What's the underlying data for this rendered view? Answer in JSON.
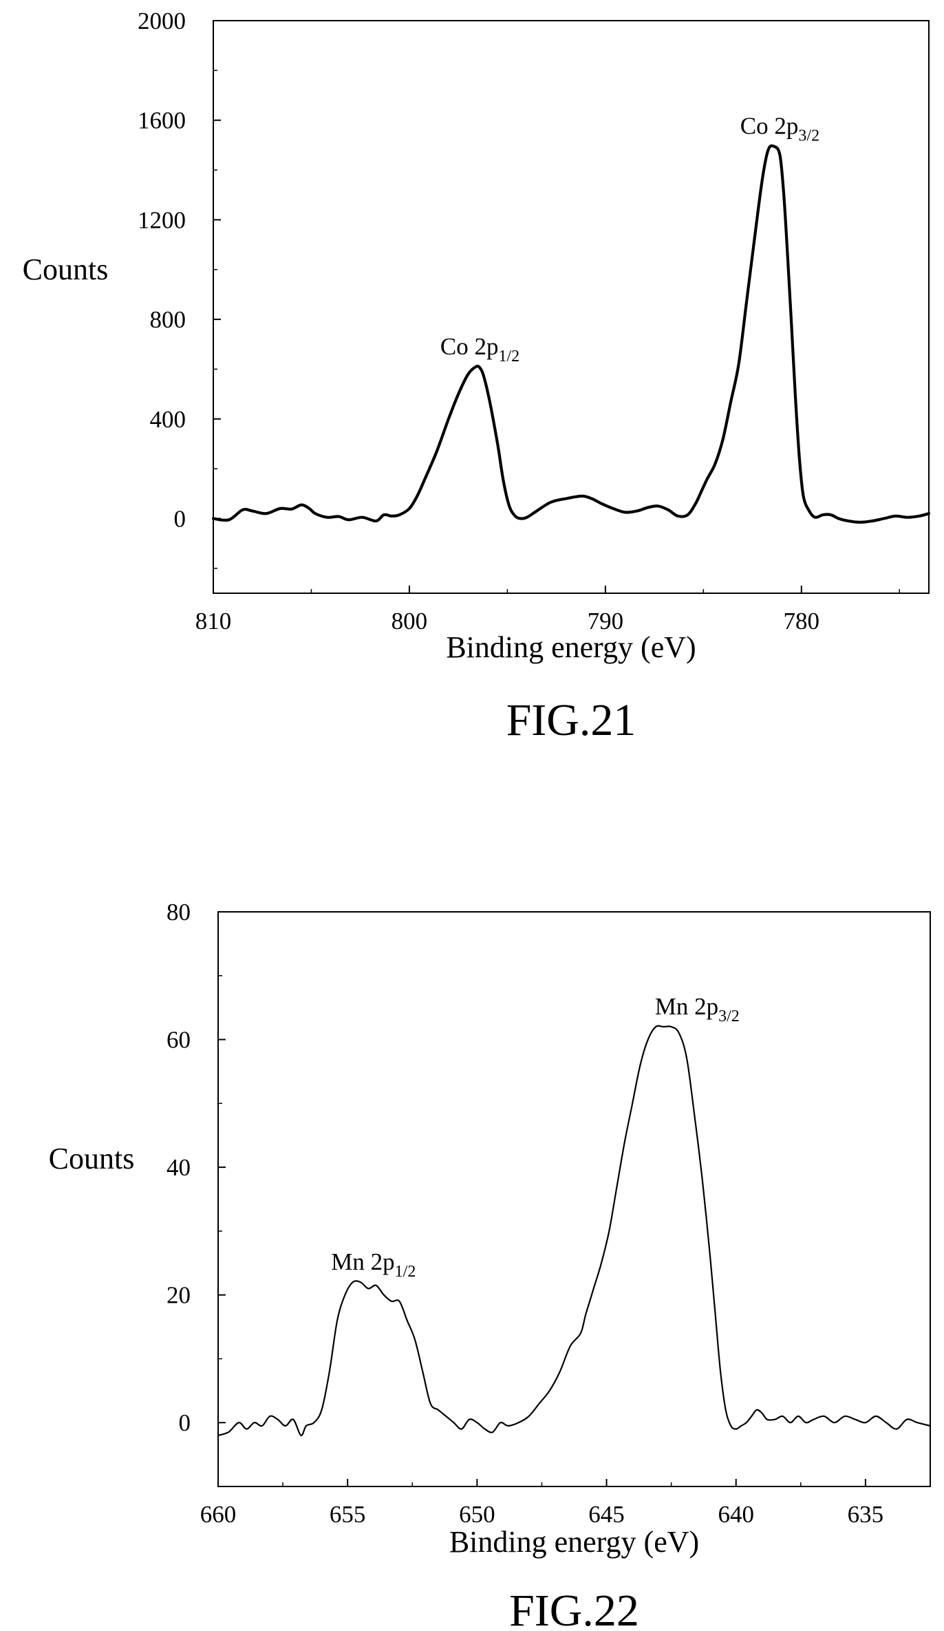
{
  "chart_data": [
    {
      "type": "line",
      "caption": "FIG.21",
      "xlabel": "Binding energy (eV)",
      "ylabel": "Counts",
      "xlim": [
        810,
        773.5
      ],
      "ylim": [
        -300,
        2000
      ],
      "xticks": [
        810,
        800,
        790,
        780
      ],
      "yticks": [
        0,
        400,
        800,
        1200,
        1600,
        2000
      ],
      "annotations": [
        {
          "main": "Co 2p",
          "sub": "1/2",
          "x": 796.4,
          "y": 610
        },
        {
          "main": "Co 2p",
          "sub": "3/2",
          "x": 781.1,
          "y": 1495
        }
      ],
      "series": [
        {
          "x": [
            810,
            809.2,
            808.5,
            808.0,
            807.3,
            806.6,
            806.0,
            805.5,
            805.1,
            804.8,
            804.2,
            803.6,
            803.1,
            802.4,
            801.7,
            801.3,
            800.9,
            800.5,
            800.0,
            799.6,
            799.2,
            798.6,
            798.0,
            797.5,
            797.0,
            796.6,
            796.4,
            796.2,
            795.9,
            795.5,
            795.2,
            794.9,
            794.6,
            794.3,
            794.0,
            793.6,
            792.8,
            792.0,
            791.2,
            790.7,
            790.2,
            789.6,
            789.0,
            788.4,
            787.8,
            787.3,
            786.8,
            786.3,
            785.8,
            785.4,
            785.1,
            784.8,
            784.4,
            784.0,
            783.6,
            783.2,
            782.8,
            782.4,
            782.0,
            781.7,
            781.4,
            781.1,
            780.9,
            780.7,
            780.5,
            780.3,
            780.1,
            779.9,
            779.6,
            779.3,
            778.9,
            778.5,
            778.1,
            777.6,
            777.0,
            776.4,
            775.8,
            775.2,
            774.6,
            774.0,
            773.5
          ],
          "y": [
            0,
            -5,
            35,
            30,
            20,
            40,
            38,
            55,
            40,
            20,
            5,
            8,
            -5,
            5,
            -10,
            15,
            10,
            15,
            40,
            90,
            160,
            270,
            400,
            500,
            580,
            610,
            605,
            570,
            470,
            300,
            150,
            50,
            10,
            0,
            5,
            25,
            65,
            80,
            90,
            80,
            60,
            40,
            25,
            30,
            45,
            50,
            35,
            10,
            15,
            60,
            110,
            160,
            220,
            320,
            470,
            620,
            870,
            1120,
            1360,
            1480,
            1495,
            1460,
            1300,
            1050,
            770,
            480,
            240,
            90,
            30,
            5,
            15,
            15,
            0,
            -10,
            -15,
            -10,
            0,
            10,
            5,
            10,
            20
          ]
        }
      ]
    },
    {
      "type": "line",
      "caption": "FIG.22",
      "xlabel": "Binding energy (eV)",
      "ylabel": "Counts",
      "xlim": [
        660,
        632.5
      ],
      "ylim": [
        -10,
        80
      ],
      "xticks": [
        660,
        655,
        650,
        645,
        640,
        635
      ],
      "yticks": [
        0,
        20,
        40,
        60,
        80
      ],
      "annotations": [
        {
          "main": "Mn 2p",
          "sub": "1/2",
          "x": 654,
          "y": 22
        },
        {
          "main": "Mn 2p",
          "sub": "3/2",
          "x": 641.5,
          "y": 62
        }
      ],
      "series": [
        {
          "x": [
            660,
            659.6,
            659.2,
            658.9,
            658.6,
            658.3,
            658.0,
            657.7,
            657.4,
            657.1,
            656.8,
            656.6,
            656.3,
            656.0,
            655.7,
            655.4,
            655.1,
            654.8,
            654.5,
            654.2,
            653.9,
            653.6,
            653.3,
            653.0,
            652.7,
            652.4,
            652.1,
            651.8,
            651.5,
            651.2,
            650.9,
            650.6,
            650.3,
            650.0,
            649.7,
            649.4,
            649.1,
            648.8,
            648.4,
            648.0,
            647.6,
            647.2,
            646.8,
            646.4,
            646.0,
            645.8,
            645.5,
            645.2,
            644.9,
            644.6,
            644.3,
            644.0,
            643.7,
            643.4,
            643.1,
            642.8,
            642.5,
            642.2,
            641.9,
            641.6,
            641.3,
            641.0,
            640.8,
            640.6,
            640.4,
            640.2,
            640.0,
            639.8,
            639.6,
            639.4,
            639.2,
            639.0,
            638.8,
            638.5,
            638.2,
            637.9,
            637.6,
            637.3,
            637.0,
            636.6,
            636.2,
            635.8,
            635.4,
            635.0,
            634.6,
            634.2,
            633.8,
            633.4,
            633.0,
            632.5
          ],
          "y": [
            -2,
            -1.5,
            0,
            -1,
            0,
            -0.5,
            1,
            0.5,
            -0.5,
            0.5,
            -2,
            -0.5,
            0,
            2,
            8,
            16,
            20,
            22,
            22,
            21,
            21.5,
            20,
            19,
            19,
            16,
            13,
            8,
            3,
            2,
            1,
            0,
            -1,
            0.5,
            0,
            -1,
            -1.5,
            0,
            -0.5,
            0,
            1,
            3,
            5,
            8,
            12,
            14,
            17,
            21,
            25,
            30,
            37,
            44,
            50,
            56,
            60,
            62,
            62,
            62,
            61,
            57,
            48,
            38,
            26,
            17,
            8,
            2,
            -0.5,
            -1,
            -0.5,
            0,
            1,
            2,
            1.5,
            0.5,
            0.5,
            1,
            0,
            1,
            0,
            0.5,
            1,
            0,
            1,
            0.5,
            0,
            1,
            0,
            -1,
            0.5,
            0,
            -0.5
          ]
        }
      ]
    }
  ]
}
